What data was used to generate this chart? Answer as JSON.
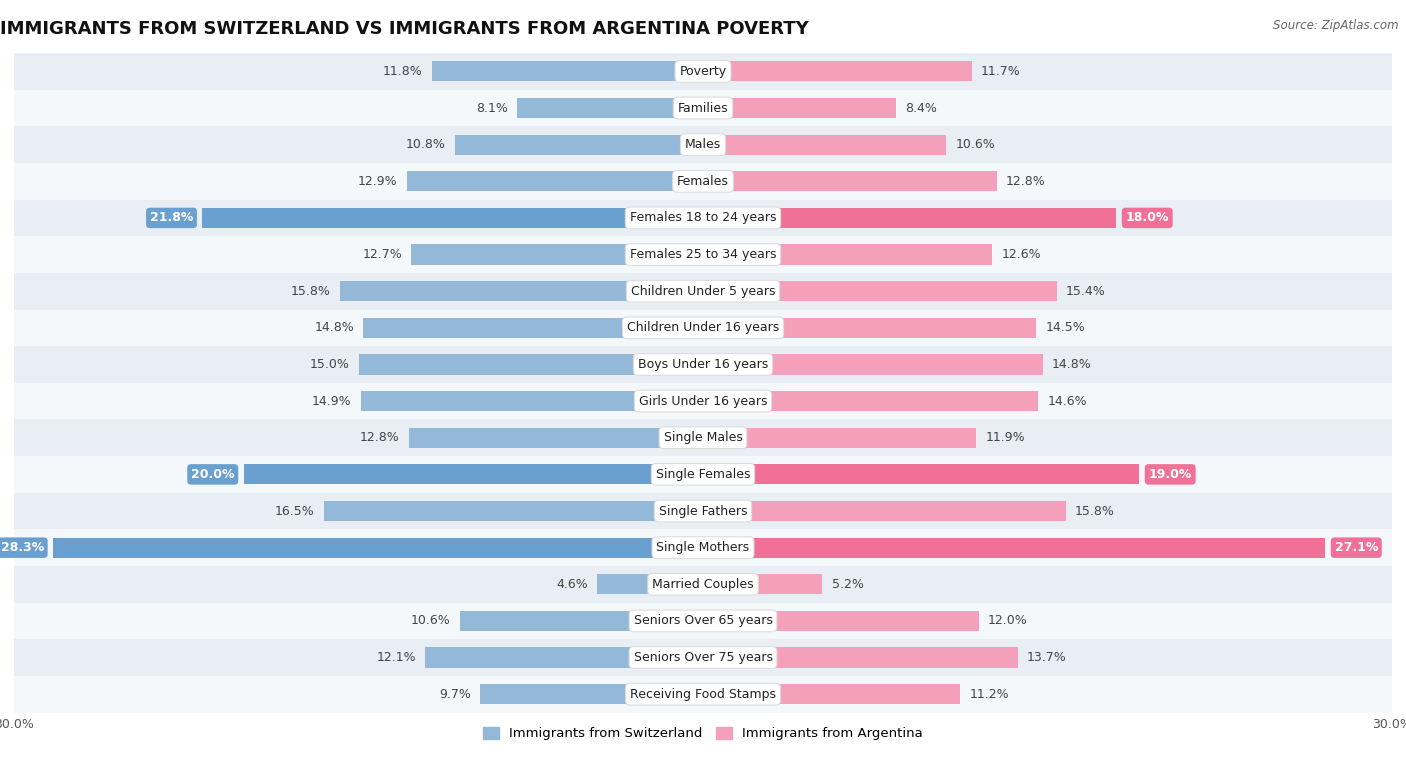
{
  "title": "IMMIGRANTS FROM SWITZERLAND VS IMMIGRANTS FROM ARGENTINA POVERTY",
  "source": "Source: ZipAtlas.com",
  "categories": [
    "Poverty",
    "Families",
    "Males",
    "Females",
    "Females 18 to 24 years",
    "Females 25 to 34 years",
    "Children Under 5 years",
    "Children Under 16 years",
    "Boys Under 16 years",
    "Girls Under 16 years",
    "Single Males",
    "Single Females",
    "Single Fathers",
    "Single Mothers",
    "Married Couples",
    "Seniors Over 65 years",
    "Seniors Over 75 years",
    "Receiving Food Stamps"
  ],
  "switzerland_values": [
    11.8,
    8.1,
    10.8,
    12.9,
    21.8,
    12.7,
    15.8,
    14.8,
    15.0,
    14.9,
    12.8,
    20.0,
    16.5,
    28.3,
    4.6,
    10.6,
    12.1,
    9.7
  ],
  "argentina_values": [
    11.7,
    8.4,
    10.6,
    12.8,
    18.0,
    12.6,
    15.4,
    14.5,
    14.8,
    14.6,
    11.9,
    19.0,
    15.8,
    27.1,
    5.2,
    12.0,
    13.7,
    11.2
  ],
  "switzerland_color": "#94b8d8",
  "argentina_color": "#f5a0ba",
  "switzerland_highlight_color": "#6aa0d0",
  "argentina_highlight_color": "#f07098",
  "highlight_rows": [
    4,
    11,
    13
  ],
  "background_color": "#ffffff",
  "row_even_color": "#e8eef4",
  "row_odd_color": "#f5f8fb",
  "xlim": 30.0,
  "bar_height": 0.55,
  "legend_switzerland": "Immigrants from Switzerland",
  "legend_argentina": "Immigrants from Argentina",
  "label_fontsize": 9,
  "category_fontsize": 9,
  "title_fontsize": 13
}
